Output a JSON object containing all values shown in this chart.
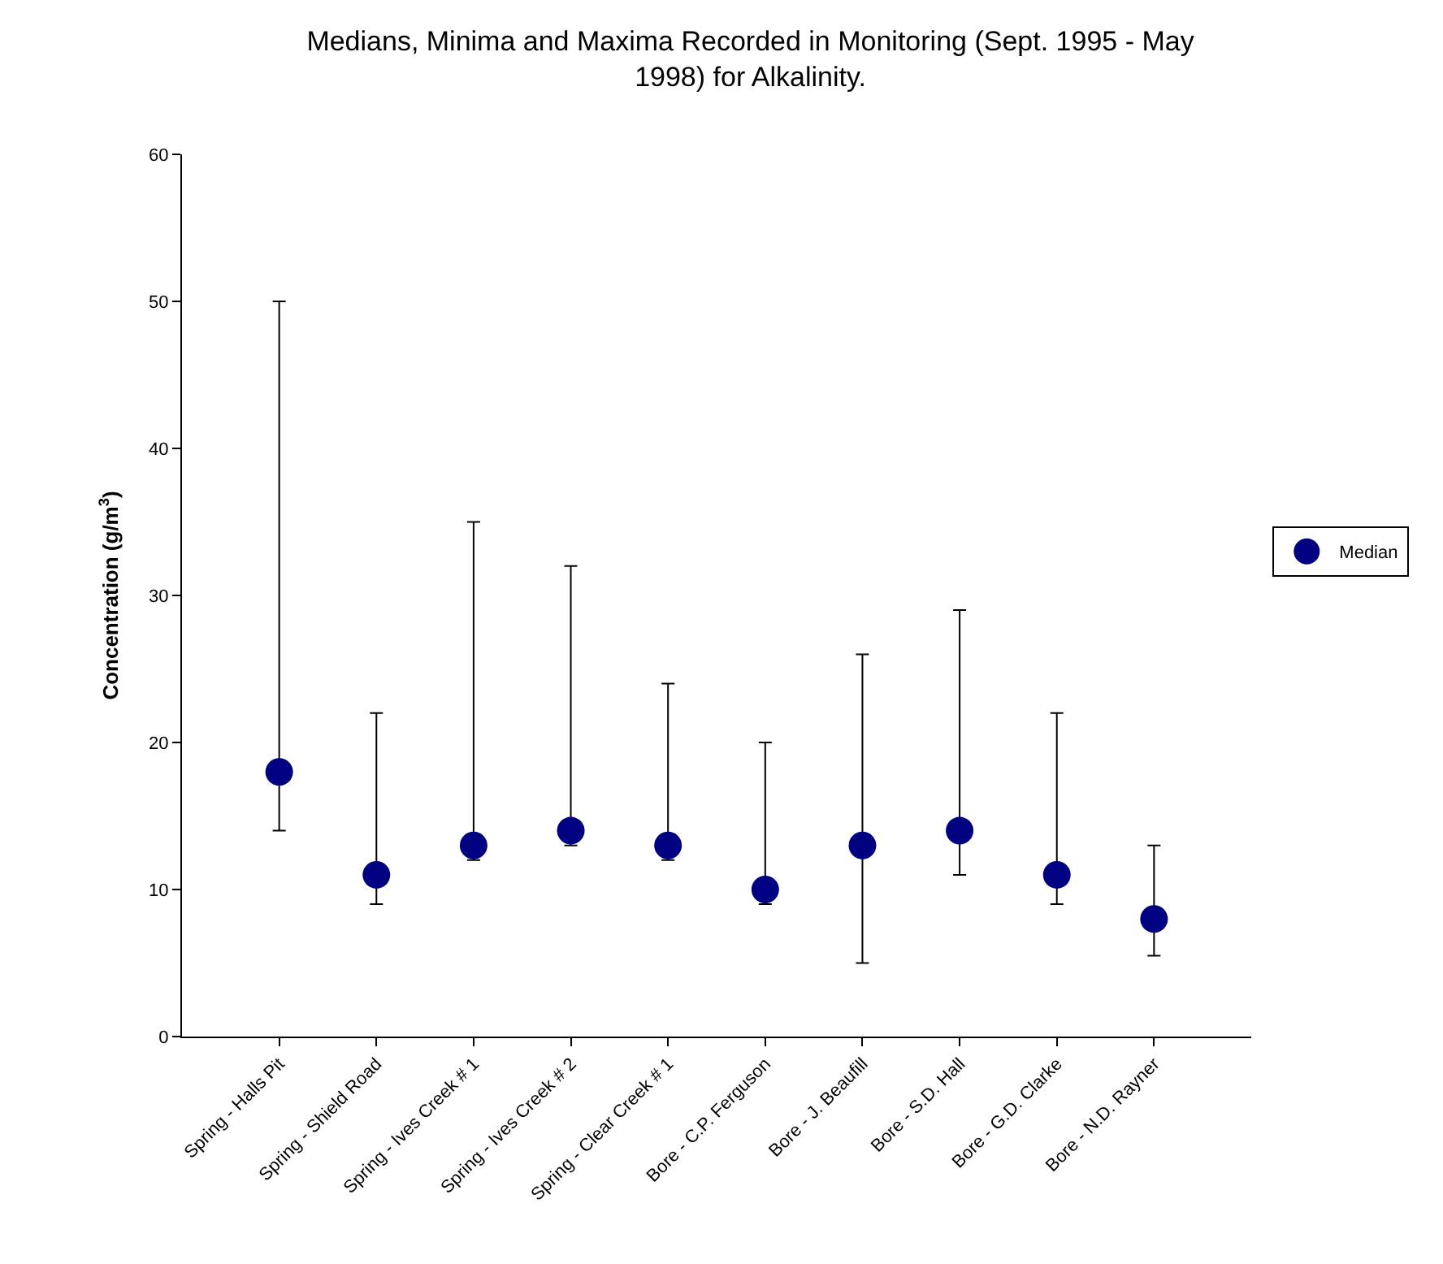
{
  "chart_data": {
    "type": "scatter",
    "title": "Medians, Minima and Maxima Recorded in Monitoring (Sept. 1995 - May 1998) for Alkalinity.",
    "ylabel": "Concentration (g/m$^{3}$)",
    "categories": [
      "Spring - Halls Pit",
      "Spring - Shield Road",
      "Spring - Ives Creek # 1",
      "Spring - Ives Creek # 2",
      "Spring - Clear Creek # 1",
      "Bore - C.P. Ferguson",
      "Bore - J. Beaufill",
      "Bore - S.D. Hall",
      "Bore - G.D. Clarke",
      "Bore - N.D. Rayner"
    ],
    "series": [
      {
        "name": "Median",
        "color": "#000080",
        "values": [
          18,
          11,
          13,
          14,
          13,
          10,
          13,
          14,
          11,
          8
        ],
        "errors": [
          [
            14,
            50
          ],
          [
            9,
            22
          ],
          [
            12,
            35
          ],
          [
            13,
            32
          ],
          [
            12,
            24
          ],
          [
            9,
            20
          ],
          [
            5,
            26
          ],
          [
            11,
            29
          ],
          [
            9,
            22
          ],
          [
            5.5,
            13
          ]
        ]
      }
    ],
    "ylim": [
      0,
      60
    ],
    "yticks": [
      0,
      10,
      20,
      30,
      40,
      50,
      60
    ],
    "marker": "circle",
    "grid": false,
    "legend": "right"
  }
}
